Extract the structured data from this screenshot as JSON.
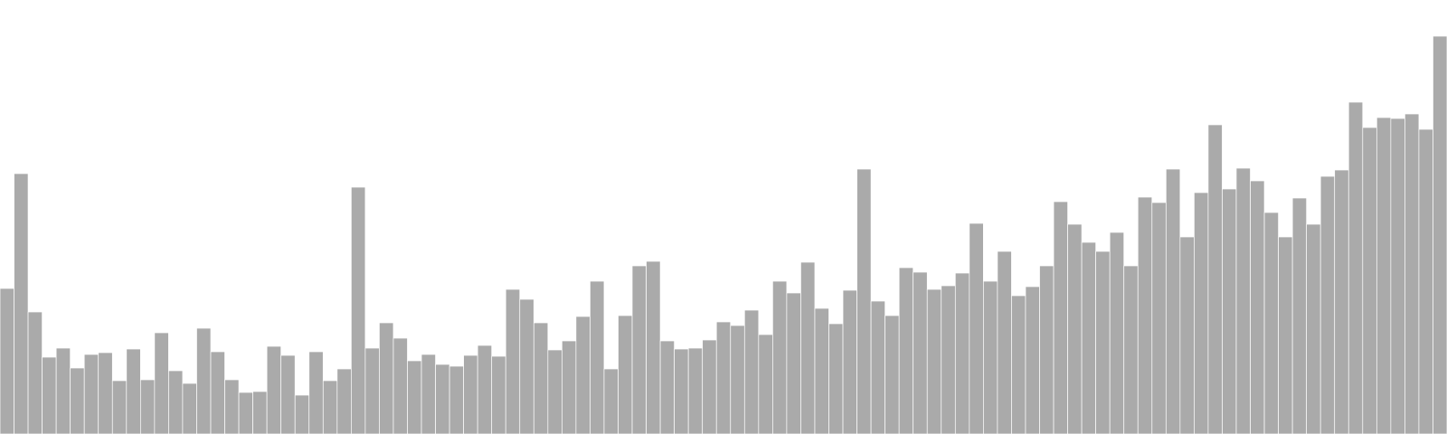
{
  "colors": {
    "bar_fill": "#aaaaaa",
    "bar_stroke": "#ffffff",
    "background": "#ffffff"
  },
  "chart_data": {
    "type": "bar",
    "title": "",
    "xlabel": "",
    "ylabel": "",
    "grid": false,
    "legend": "none",
    "ylim": [
      0,
      480
    ],
    "values": [
      161,
      288,
      135,
      85,
      95,
      73,
      88,
      90,
      59,
      94,
      60,
      112,
      70,
      56,
      117,
      91,
      60,
      46,
      47,
      97,
      87,
      43,
      91,
      59,
      72,
      273,
      95,
      123,
      106,
      81,
      88,
      77,
      75,
      87,
      98,
      86,
      160,
      149,
      123,
      93,
      103,
      130,
      169,
      72,
      131,
      186,
      191,
      103,
      94,
      95,
      104,
      124,
      120,
      137,
      110,
      169,
      156,
      190,
      139,
      122,
      159,
      293,
      147,
      131,
      184,
      179,
      160,
      164,
      178,
      233,
      169,
      202,
      153,
      163,
      186,
      257,
      232,
      212,
      202,
      223,
      186,
      262,
      256,
      293,
      218,
      267,
      342,
      271,
      294,
      280,
      245,
      218,
      261,
      232,
      285,
      292,
      367,
      339,
      350,
      349,
      354,
      337,
      440
    ]
  }
}
